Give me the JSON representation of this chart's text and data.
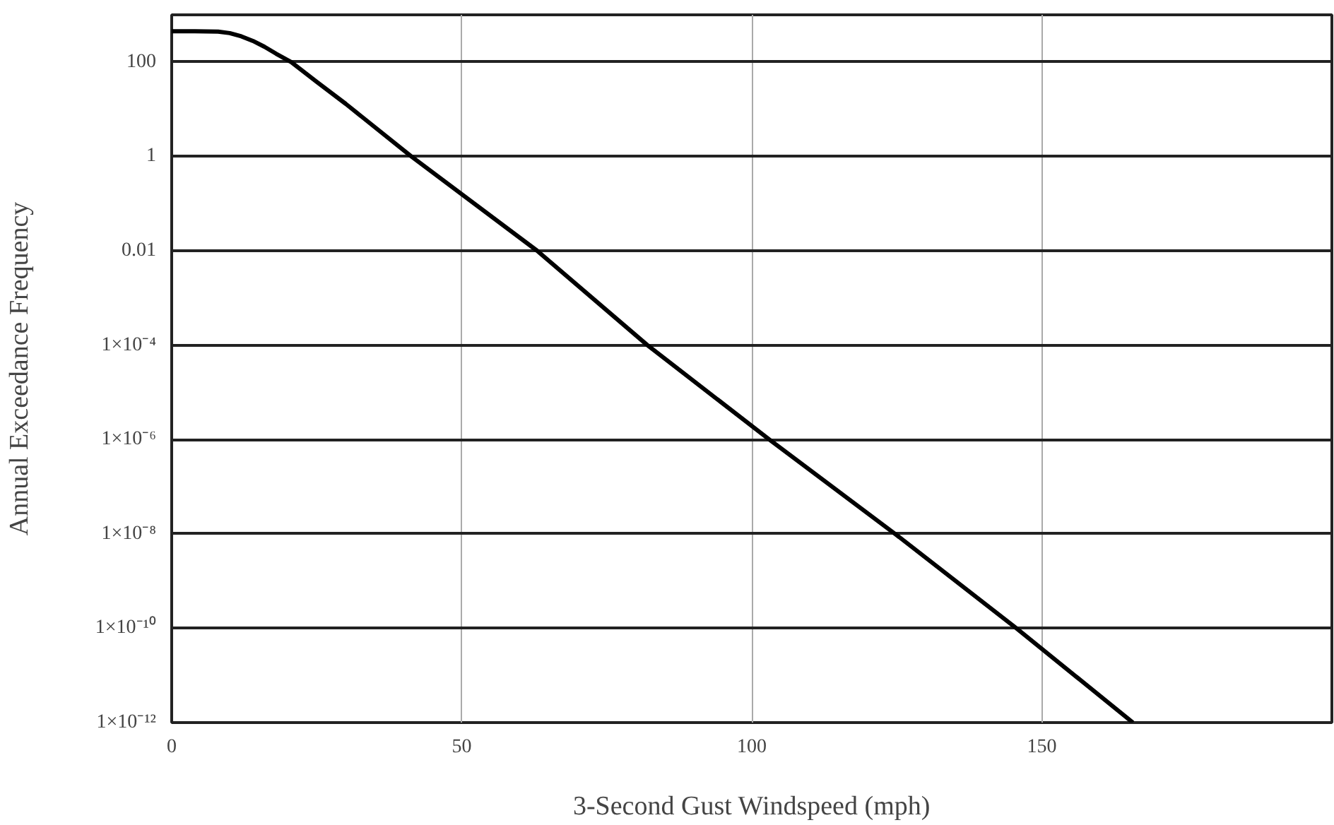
{
  "chart_data": {
    "type": "line",
    "xlabel": "3-Second Gust Windspeed (mph)",
    "ylabel": "Annual Exceedance Frequency",
    "x": [
      0,
      4,
      8,
      10,
      12,
      14,
      16,
      18,
      20.6,
      25,
      30,
      41.3,
      63,
      82,
      103,
      124.7,
      145.6,
      165.7
    ],
    "series": [
      {
        "color": "#000000",
        "values": [
          450,
          450,
          440,
          410,
          350,
          280,
          210,
          150,
          100,
          38,
          13,
          1,
          0.01,
          0.0001,
          1e-06,
          1e-08,
          1e-10,
          1e-12
        ]
      }
    ],
    "xlim": [
      0,
      200
    ],
    "xticks": [
      0,
      50,
      100,
      150
    ],
    "ylim": [
      1e-12,
      1000
    ],
    "log": true,
    "yticks": [
      {
        "value": 1e-12,
        "label": "1×10⁻¹²"
      },
      {
        "value": 1e-10,
        "label": "1×10⁻¹⁰"
      },
      {
        "value": 1e-08,
        "label": "1×10⁻⁸"
      },
      {
        "value": 1e-06,
        "label": "1×10⁻⁶"
      },
      {
        "value": 0.0001,
        "label": "1×10⁻⁴"
      },
      0.01,
      1,
      100
    ],
    "grid": true,
    "marker": "none",
    "line_style": "solid"
  }
}
